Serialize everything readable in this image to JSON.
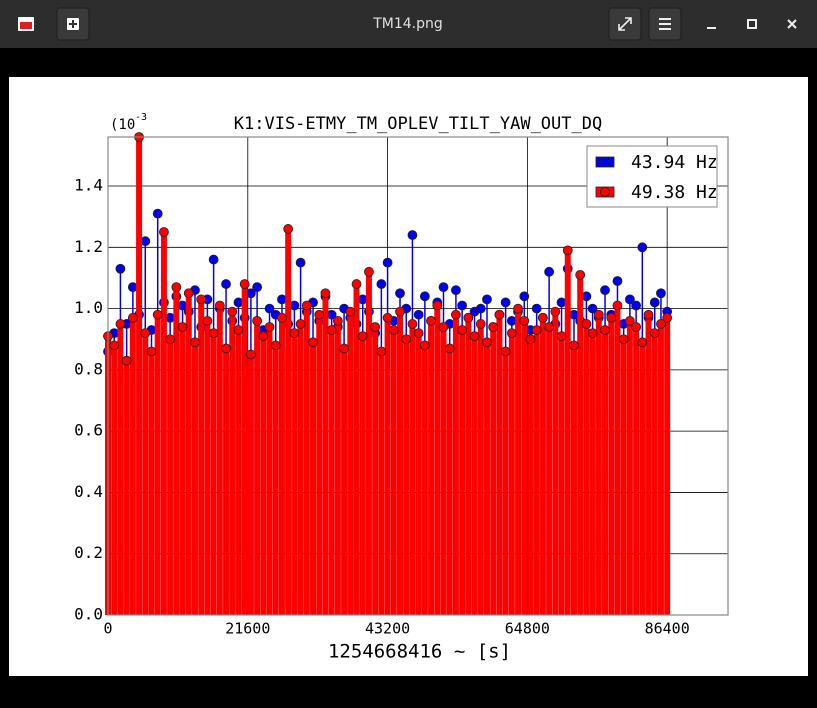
{
  "window_title": "TM14.png",
  "chart_data": {
    "type": "stem",
    "title": "K1:VIS-ETMY_TM_OPLEV_TILT_YAW_OUT_DQ",
    "y_scale_label": "(10",
    "y_scale_exponent": "-3",
    "x_label": "1254668416 ~ [s]",
    "legend": "upper right",
    "grid": true,
    "xlim": [
      0,
      95800
    ],
    "ylim": [
      0,
      1.56
    ],
    "xticks": [
      0,
      21600,
      43200,
      64800,
      86400
    ],
    "yticks": [
      {
        "value": 0,
        "label": "0.0"
      },
      0.2,
      0.4,
      0.6,
      0.8,
      {
        "value": 1,
        "label": "1.0"
      },
      1.2,
      1.4
    ],
    "x": [
      0,
      960,
      1920,
      2880,
      3840,
      4800,
      5760,
      6720,
      7680,
      8640,
      9600,
      10560,
      11520,
      12480,
      13440,
      14400,
      15360,
      16320,
      17280,
      18240,
      19200,
      20160,
      21120,
      22080,
      23040,
      24000,
      24960,
      25920,
      26880,
      27840,
      28800,
      29760,
      30720,
      31680,
      32640,
      33600,
      34560,
      35520,
      36480,
      37440,
      38400,
      39360,
      40320,
      41280,
      42240,
      43200,
      44160,
      45120,
      46080,
      47040,
      48000,
      48960,
      49920,
      50880,
      51840,
      52800,
      53760,
      54720,
      55680,
      56640,
      57600,
      58560,
      59520,
      60480,
      61440,
      62400,
      63360,
      64320,
      65280,
      66240,
      67200,
      68160,
      69120,
      70080,
      71040,
      72000,
      72960,
      73920,
      74880,
      75840,
      76800,
      77760,
      78720,
      79680,
      80640,
      81600,
      82560,
      83520,
      84480,
      85440,
      86400
    ],
    "series": [
      {
        "name": "43.94 Hz",
        "color": "#0000ee",
        "values": [
          0.86,
          0.92,
          1.13,
          0.95,
          1.07,
          0.98,
          1.22,
          0.93,
          1.31,
          1.02,
          0.97,
          1.04,
          1.01,
          0.99,
          1.06,
          0.94,
          1.03,
          1.16,
          1.0,
          1.08,
          0.96,
          1.02,
          0.97,
          1.05,
          1.07,
          0.93,
          1.0,
          0.98,
          1.03,
          0.95,
          1.01,
          1.15,
          0.99,
          1.02,
          0.96,
          1.04,
          0.98,
          0.94,
          1.0,
          0.97,
          0.95,
          1.03,
          0.99,
          0.92,
          1.08,
          1.15,
          0.96,
          1.05,
          1.0,
          1.24,
          0.98,
          1.04,
          0.96,
          1.02,
          1.07,
          0.95,
          1.06,
          1.01,
          0.97,
          0.99,
          1.0,
          1.03,
          0.94,
          0.98,
          1.02,
          0.96,
          0.99,
          1.04,
          0.93,
          1.0,
          0.97,
          1.12,
          0.95,
          1.02,
          1.13,
          0.98,
          0.96,
          1.04,
          1.0,
          0.97,
          1.06,
          0.98,
          1.09,
          0.95,
          1.03,
          1.01,
          1.2,
          0.97,
          1.02,
          1.05,
          0.99
        ]
      },
      {
        "name": "49.38 Hz",
        "color": "#ff0000",
        "values": [
          0.91,
          0.88,
          0.95,
          0.83,
          0.97,
          1.56,
          0.92,
          0.86,
          0.98,
          1.25,
          0.9,
          1.07,
          0.94,
          1.05,
          0.89,
          1.03,
          0.96,
          0.92,
          1.01,
          0.87,
          0.99,
          0.93,
          1.08,
          0.85,
          0.96,
          0.91,
          0.94,
          0.88,
          0.97,
          1.26,
          0.92,
          0.95,
          1.01,
          0.89,
          0.98,
          1.05,
          0.93,
          0.96,
          0.87,
          0.99,
          1.08,
          0.91,
          1.12,
          0.94,
          0.86,
          0.97,
          0.93,
          0.99,
          0.9,
          0.95,
          0.92,
          0.88,
          0.96,
          1.01,
          0.94,
          0.87,
          0.98,
          0.93,
          0.97,
          0.91,
          0.95,
          0.89,
          0.94,
          0.98,
          0.86,
          0.92,
          1.0,
          0.96,
          0.9,
          0.93,
          0.97,
          0.94,
          0.99,
          0.91,
          1.19,
          0.88,
          1.11,
          0.95,
          0.92,
          0.98,
          0.93,
          0.97,
          1.01,
          0.9,
          0.96,
          0.94,
          0.89,
          0.98,
          0.92,
          0.95,
          0.97
        ]
      }
    ]
  }
}
